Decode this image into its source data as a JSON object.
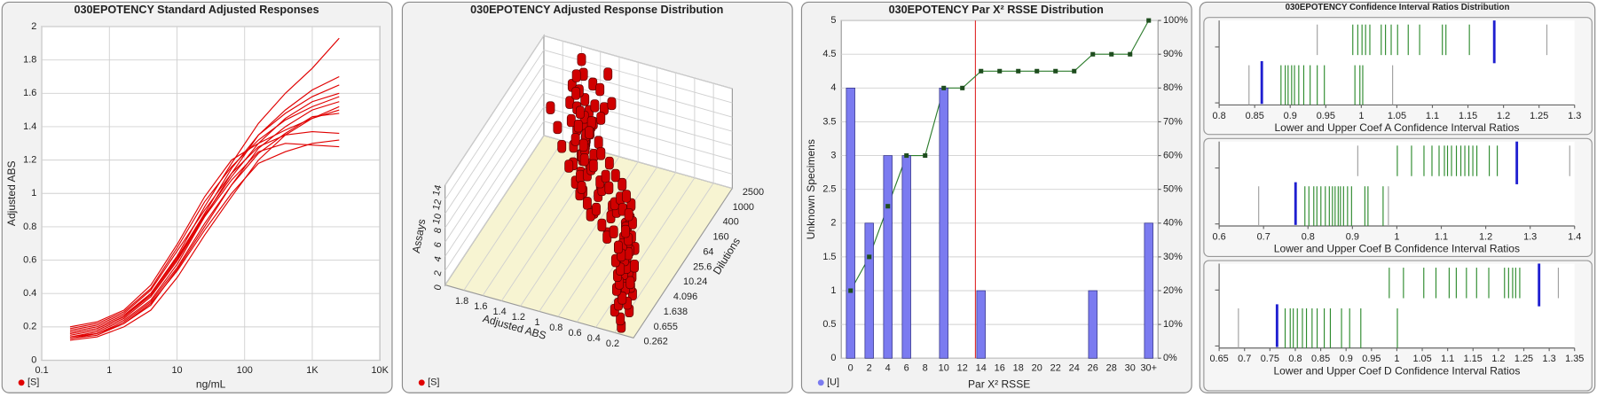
{
  "chart_data": [
    {
      "type": "line",
      "title": "030EPOTENCY Standard Adjusted Responses",
      "xlabel": "ng/mL",
      "ylabel": "Adjusted ABS",
      "xlog": true,
      "grid": true,
      "x": [
        0.262,
        0.655,
        1.638,
        4.096,
        10.24,
        25.6,
        64,
        160,
        400,
        1000,
        2500
      ],
      "xlim": [
        0.1,
        10000
      ],
      "xticks": [
        0.1,
        1,
        10,
        100,
        {
          "value": 1000,
          "label": "1K"
        },
        {
          "value": 10000,
          "label": "10K"
        }
      ],
      "ylim": [
        0,
        2
      ],
      "yticks": [
        0,
        0.2,
        0.4,
        0.6,
        0.8,
        1,
        1.2,
        1.4,
        1.6,
        1.8,
        2
      ],
      "legend": {
        "label": "[S]",
        "color": "#e00000"
      },
      "series": [
        {
          "color": "#e00000",
          "values": [
            0.13,
            0.15,
            0.22,
            0.33,
            0.55,
            0.8,
            1.05,
            1.27,
            1.4,
            1.5,
            1.55
          ]
        },
        {
          "color": "#e00000",
          "values": [
            0.14,
            0.17,
            0.24,
            0.36,
            0.58,
            0.86,
            1.12,
            1.35,
            1.48,
            1.58,
            1.65
          ]
        },
        {
          "color": "#e00000",
          "values": [
            0.2,
            0.23,
            0.3,
            0.45,
            0.7,
            0.98,
            1.2,
            1.3,
            1.38,
            1.45,
            1.5
          ]
        },
        {
          "color": "#e00000",
          "values": [
            0.16,
            0.19,
            0.26,
            0.4,
            0.63,
            0.92,
            1.18,
            1.42,
            1.6,
            1.75,
            1.93
          ]
        },
        {
          "color": "#e00000",
          "values": [
            0.12,
            0.14,
            0.2,
            0.3,
            0.5,
            0.75,
            0.98,
            1.2,
            1.35,
            1.45,
            1.52
          ]
        },
        {
          "color": "#e00000",
          "values": [
            0.18,
            0.21,
            0.28,
            0.42,
            0.66,
            0.9,
            1.12,
            1.28,
            1.35,
            1.37,
            1.36
          ]
        },
        {
          "color": "#e00000",
          "values": [
            0.15,
            0.18,
            0.25,
            0.38,
            0.6,
            0.86,
            1.08,
            1.25,
            1.3,
            1.29,
            1.28
          ]
        },
        {
          "color": "#e00000",
          "values": [
            0.17,
            0.2,
            0.27,
            0.4,
            0.62,
            0.88,
            1.15,
            1.35,
            1.5,
            1.62,
            1.7
          ]
        },
        {
          "color": "#e00000",
          "values": [
            0.14,
            0.16,
            0.23,
            0.35,
            0.56,
            0.82,
            1.05,
            1.24,
            1.36,
            1.46,
            1.48
          ]
        },
        {
          "color": "#e00000",
          "values": [
            0.19,
            0.22,
            0.29,
            0.43,
            0.68,
            0.95,
            1.16,
            1.32,
            1.44,
            1.52,
            1.58
          ]
        },
        {
          "color": "#e00000",
          "values": [
            0.13,
            0.16,
            0.22,
            0.34,
            0.54,
            0.78,
            1.0,
            1.18,
            1.25,
            1.3,
            1.32
          ]
        },
        {
          "color": "#e00000",
          "values": [
            0.16,
            0.19,
            0.26,
            0.39,
            0.61,
            0.87,
            1.1,
            1.3,
            1.45,
            1.55,
            1.6
          ]
        }
      ]
    },
    {
      "type": "bar3d",
      "title": "030EPOTENCY Adjusted Response Distribution",
      "xlabel": "Adjusted ABS",
      "ylabel": "Dilutions",
      "zlabel": "Assays",
      "xlim": [
        0,
        2
      ],
      "xticks": [
        0.2,
        0.4,
        0.6,
        0.8,
        1,
        1.2,
        1.4,
        1.6,
        1.8
      ],
      "zlim": [
        0,
        14
      ],
      "zticks": [
        0,
        2,
        4,
        6,
        8,
        10,
        12,
        14
      ],
      "categories": [
        "0.262",
        "0.655",
        "1.638",
        "4.096",
        "10.24",
        "25.6",
        "64",
        "160",
        "400",
        "1000",
        "2500"
      ],
      "legend": {
        "label": "[S]",
        "color": "#e00000"
      },
      "series": [
        {
          "color": "#d00000",
          "values": [
            0.13,
            0.15,
            0.22,
            0.33,
            0.55,
            0.8,
            1.05,
            1.27,
            1.4,
            1.5,
            1.55
          ]
        },
        {
          "color": "#d00000",
          "values": [
            0.14,
            0.17,
            0.24,
            0.36,
            0.58,
            0.86,
            1.12,
            1.35,
            1.48,
            1.58,
            1.65
          ]
        },
        {
          "color": "#d00000",
          "values": [
            0.2,
            0.23,
            0.3,
            0.45,
            0.7,
            0.98,
            1.2,
            1.3,
            1.38,
            1.45,
            1.5
          ]
        },
        {
          "color": "#d00000",
          "values": [
            0.16,
            0.19,
            0.26,
            0.4,
            0.63,
            0.92,
            1.18,
            1.42,
            1.6,
            1.75,
            1.93
          ]
        },
        {
          "color": "#d00000",
          "values": [
            0.12,
            0.14,
            0.2,
            0.3,
            0.5,
            0.75,
            0.98,
            1.2,
            1.35,
            1.45,
            1.52
          ]
        },
        {
          "color": "#d00000",
          "values": [
            0.18,
            0.21,
            0.28,
            0.42,
            0.66,
            0.9,
            1.12,
            1.28,
            1.35,
            1.37,
            1.36
          ]
        },
        {
          "color": "#d00000",
          "values": [
            0.15,
            0.18,
            0.25,
            0.38,
            0.6,
            0.86,
            1.08,
            1.25,
            1.3,
            1.29,
            1.28
          ]
        },
        {
          "color": "#d00000",
          "values": [
            0.17,
            0.2,
            0.27,
            0.4,
            0.62,
            0.88,
            1.15,
            1.35,
            1.5,
            1.62,
            1.7
          ]
        },
        {
          "color": "#d00000",
          "values": [
            0.14,
            0.16,
            0.23,
            0.35,
            0.56,
            0.82,
            1.05,
            1.24,
            1.36,
            1.46,
            1.48
          ]
        },
        {
          "color": "#d00000",
          "values": [
            0.19,
            0.22,
            0.29,
            0.43,
            0.68,
            0.95,
            1.16,
            1.32,
            1.44,
            1.52,
            1.58
          ]
        },
        {
          "color": "#d00000",
          "values": [
            0.13,
            0.16,
            0.22,
            0.34,
            0.54,
            0.78,
            1.0,
            1.18,
            1.25,
            1.3,
            1.32
          ]
        },
        {
          "color": "#d00000",
          "values": [
            0.16,
            0.19,
            0.26,
            0.39,
            0.61,
            0.87,
            1.1,
            1.3,
            1.45,
            1.55,
            1.6
          ]
        }
      ]
    },
    {
      "type": "bar-line",
      "title": "030EPOTENCY Par X² RSSE Distribution",
      "xlabel": "Par X² RSSE",
      "ylabel": "Unknown Specimens",
      "grid": true,
      "categories": [
        "0",
        "2",
        "4",
        "6",
        "8",
        "10",
        "12",
        "14",
        "16",
        "18",
        "20",
        "22",
        "24",
        "26",
        "28",
        "30",
        "30+"
      ],
      "ylim": [
        0,
        5
      ],
      "yticks": [
        0,
        0.5,
        1,
        1.5,
        2,
        2.5,
        3,
        3.5,
        4,
        4.5,
        5
      ],
      "y2lim": [
        0,
        100
      ],
      "y2ticks": [
        {
          "value": 0,
          "label": "0%"
        },
        {
          "value": 10,
          "label": "10%"
        },
        {
          "value": 20,
          "label": "20%"
        },
        {
          "value": 30,
          "label": "30%"
        },
        {
          "value": 40,
          "label": "40%"
        },
        {
          "value": 50,
          "label": "50%"
        },
        {
          "value": 60,
          "label": "60%"
        },
        {
          "value": 70,
          "label": "70%"
        },
        {
          "value": 80,
          "label": "80%"
        },
        {
          "value": 90,
          "label": "90%"
        },
        {
          "value": 100,
          "label": "100%"
        }
      ],
      "reference_line": {
        "value": 13.4,
        "color": "#e03030"
      },
      "legend": {
        "label": "[U]",
        "color": "#7b7bf0"
      },
      "series": [
        {
          "type": "bar",
          "color": "#7b7bf0",
          "values": [
            4,
            2,
            3,
            3,
            0,
            4,
            0,
            1,
            0,
            0,
            0,
            0,
            0,
            1,
            0,
            0,
            2
          ]
        },
        {
          "type": "line",
          "axis": "y2",
          "color": "#2e7d2e",
          "values": [
            20,
            30,
            45,
            60,
            60,
            80,
            80,
            85,
            85,
            85,
            85,
            85,
            85,
            90,
            90,
            90,
            100
          ]
        }
      ]
    },
    {
      "type": "strip",
      "title": "030EPOTENCY Confidence Interval Ratios Distribution",
      "xlabel": "Lower and Upper Coef A Confidence Interval Ratios",
      "xlim": [
        0.8,
        1.3
      ],
      "xticks": [
        0.8,
        0.85,
        0.9,
        0.95,
        1,
        1.05,
        1.1,
        1.15,
        1.2,
        1.25,
        1.3
      ],
      "rows": [
        {
          "series": [
            {
              "color": "#2e8b2e",
              "values": [
                0.988,
                0.995,
                1.001,
                1.006,
                1.012,
                1.028,
                1.034,
                1.042,
                1.051,
                1.066,
                1.082,
                1.114,
                1.119,
                1.152
              ]
            },
            {
              "color": "#a0a0a0",
              "values": [
                0.938,
                1.261
              ]
            }
          ],
          "marker": {
            "color": "#1f1fd0",
            "value": 1.187
          }
        },
        {
          "series": [
            {
              "color": "#2e8b2e",
              "values": [
                0.887,
                0.893,
                0.897,
                0.902,
                0.906,
                0.912,
                0.919,
                0.928,
                0.938,
                0.948,
                0.991,
                0.998,
                1.002
              ]
            },
            {
              "color": "#a0a0a0",
              "values": [
                0.842,
                1.044
              ]
            }
          ],
          "marker": {
            "color": "#1f1fd0",
            "value": 0.86
          }
        }
      ]
    },
    {
      "type": "strip",
      "xlabel": "Lower and Upper Coef B Confidence Interval Ratios",
      "xlim": [
        0.6,
        1.4
      ],
      "xticks": [
        0.6,
        0.7,
        0.8,
        0.9,
        1,
        1.1,
        1.2,
        1.3,
        1.4
      ],
      "rows": [
        {
          "series": [
            {
              "color": "#2e8b2e",
              "values": [
                1.001,
                1.033,
                1.061,
                1.079,
                1.095,
                1.107,
                1.114,
                1.123,
                1.134,
                1.144,
                1.153,
                1.162,
                1.171,
                1.18,
                1.208,
                1.226
              ]
            },
            {
              "color": "#a0a0a0",
              "values": [
                0.912,
                1.389
              ]
            }
          ],
          "marker": {
            "color": "#1f1fd0",
            "value": 1.27
          }
        },
        {
          "series": [
            {
              "color": "#2e8b2e",
              "values": [
                0.793,
                0.802,
                0.813,
                0.82,
                0.829,
                0.839,
                0.848,
                0.855,
                0.861,
                0.868,
                0.873,
                0.88,
                0.889,
                0.898,
                0.928,
                0.935,
                0.969
              ]
            },
            {
              "color": "#a0a0a0",
              "values": [
                0.689,
                0.981
              ]
            }
          ],
          "marker": {
            "color": "#1f1fd0",
            "value": 0.772
          }
        }
      ]
    },
    {
      "type": "strip",
      "xlabel": "Lower and Upper Coef D Confidence Interval Ratios",
      "xlim": [
        0.65,
        1.35
      ],
      "xticks": [
        0.65,
        0.7,
        0.75,
        0.8,
        0.85,
        0.9,
        0.95,
        1,
        1.05,
        1.1,
        1.15,
        1.2,
        1.25,
        1.3,
        1.35
      ],
      "rows": [
        {
          "series": [
            {
              "color": "#2e8b2e",
              "values": [
                0.985,
                1.013,
                1.053,
                1.077,
                1.103,
                1.117,
                1.137,
                1.157,
                1.181,
                1.212,
                1.22,
                1.228,
                1.234,
                1.242
              ]
            },
            {
              "color": "#a0a0a0",
              "values": [
                1.318
              ]
            }
          ],
          "marker": {
            "color": "#1f1fd0",
            "value": 1.28
          }
        },
        {
          "series": [
            {
              "color": "#2e8b2e",
              "values": [
                0.78,
                0.79,
                0.796,
                0.804,
                0.814,
                0.822,
                0.833,
                0.843,
                0.857,
                0.869,
                0.891,
                0.907,
                0.929,
                1.001
              ]
            },
            {
              "color": "#a0a0a0",
              "values": [
                0.688
              ]
            }
          ],
          "marker": {
            "color": "#1f1fd0",
            "value": 0.764
          }
        }
      ]
    }
  ]
}
